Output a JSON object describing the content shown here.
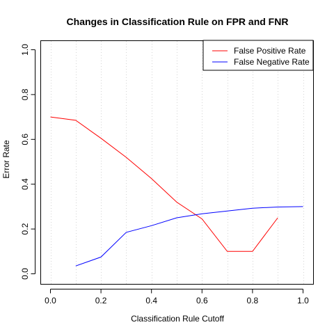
{
  "chart_data": {
    "type": "line",
    "title": "Changes in Classification Rule on FPR and FNR",
    "xlabel": "Classification Rule Cutoff",
    "ylabel": "Error Rate",
    "xlim": [
      0.0,
      1.0
    ],
    "ylim": [
      0.0,
      1.0
    ],
    "x_ticks": [
      "0.0",
      "0.2",
      "0.4",
      "0.6",
      "0.8",
      "1.0"
    ],
    "y_ticks": [
      "0.0",
      "0.2",
      "0.4",
      "0.6",
      "0.8",
      "1.0"
    ],
    "grid": "vertical dotted",
    "legend_position": "top-right",
    "series": [
      {
        "name": "False Positive Rate",
        "color": "#ff0000",
        "x": [
          0.0,
          0.1,
          0.2,
          0.3,
          0.4,
          0.5,
          0.6,
          0.7,
          0.8,
          0.9
        ],
        "y": [
          0.7,
          0.685,
          0.605,
          0.52,
          0.425,
          0.32,
          0.245,
          0.1,
          0.1,
          0.25
        ]
      },
      {
        "name": "False Negative Rate",
        "color": "#0000ff",
        "x": [
          0.1,
          0.2,
          0.3,
          0.4,
          0.5,
          0.6,
          0.7,
          0.8,
          0.9,
          1.0
        ],
        "y": [
          0.035,
          0.075,
          0.185,
          0.215,
          0.25,
          0.268,
          0.28,
          0.293,
          0.298,
          0.3
        ]
      }
    ]
  }
}
